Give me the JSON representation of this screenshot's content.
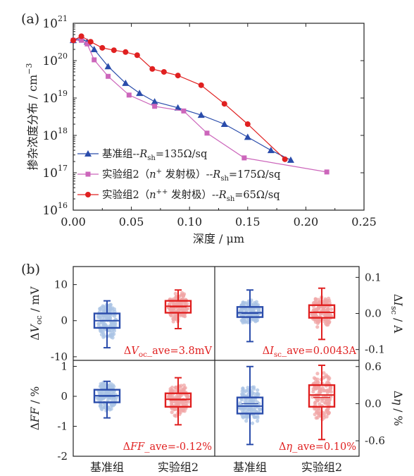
{
  "panel_a": {
    "label": "(a)",
    "chart_data": {
      "type": "line",
      "title": "",
      "xlabel_cn": "深度",
      "xlabel_unit": "μm",
      "ylabel_cn": "掺杂浓度分布",
      "ylabel_unit": "cm",
      "ylabel_exp": "−3",
      "xlim": [
        0.0,
        0.25
      ],
      "ylim": [
        1e+16,
        1e+21
      ],
      "yscale": "log",
      "xticks": [
        "0.00",
        "0.05",
        "0.10",
        "0.15",
        "0.20",
        "0.25"
      ],
      "ytick_exponents": [
        "16",
        "17",
        "18",
        "19",
        "20",
        "21"
      ],
      "legend_position": "bottom-left",
      "series": [
        {
          "name": "基准组--Rsh=135Ω/sq",
          "legend": {
            "pre": "基准组--",
            "r": "R",
            "sub": "sh",
            "post": "=135Ω/sq"
          },
          "color": "#2a4cab",
          "marker": "triangle",
          "x": [
            0.0,
            0.007,
            0.012,
            0.018,
            0.03,
            0.045,
            0.057,
            0.07,
            0.09,
            0.11,
            0.13,
            0.15,
            0.17,
            0.187
          ],
          "y": [
            3.5e+20,
            4e+20,
            3.2e+20,
            2e+20,
            7e+19,
            2.5e+19,
            1.35e+19,
            8e+18,
            5.5e+18,
            3.5e+18,
            2e+18,
            9e+17,
            4e+17,
            2.2e+17
          ]
        },
        {
          "name": "实验组2（n+ 发射极）--Rsh=175Ω/sq",
          "legend": {
            "pre": "实验组2（",
            "n": "n",
            "sup": "+",
            "mid": " 发射极）--",
            "r": "R",
            "sub": "sh",
            "post": "=175Ω/sq"
          },
          "color": "#cc66bb",
          "marker": "square",
          "x": [
            0.0,
            0.007,
            0.012,
            0.018,
            0.03,
            0.048,
            0.07,
            0.095,
            0.115,
            0.147,
            0.218
          ],
          "y": [
            3.5e+20,
            3.5e+20,
            2.8e+20,
            1.05e+20,
            3.8e+19,
            1.2e+19,
            6e+18,
            4.5e+18,
            1.15e+18,
            2.5e+17,
            1.05e+17
          ]
        },
        {
          "name": "实验组2（n++ 发射极）--Rsh=65Ω/sq",
          "legend": {
            "pre": "实验组2（",
            "n": "n",
            "sup": "++",
            "mid": " 发射极）--",
            "r": "R",
            "sub": "sh",
            "post": "=65Ω/sq"
          },
          "color": "#e02020",
          "marker": "circle",
          "x": [
            0.0,
            0.007,
            0.015,
            0.025,
            0.035,
            0.045,
            0.055,
            0.068,
            0.078,
            0.09,
            0.11,
            0.13,
            0.15,
            0.182
          ],
          "y": [
            3.5e+20,
            4.5e+20,
            3.2e+20,
            2.2e+20,
            1.9e+20,
            1.7e+20,
            1.4e+20,
            6e+19,
            5e+19,
            4e+19,
            2.2e+19,
            7e+18,
            2e+18,
            2.3e+17
          ]
        }
      ]
    }
  },
  "panel_b": {
    "label": "(b)",
    "colors": {
      "base": "#2a4cab",
      "base_light": "#a9c3e4",
      "exp": "#e02020",
      "exp_light": "#f0a5a5",
      "annotation": "#e02020"
    },
    "x_categories": [
      "基准组",
      "实验组2",
      "基准组",
      "实验组2"
    ],
    "chart_data": [
      {
        "type": "box",
        "metric": "Voc",
        "ylabel": {
          "pre": "Δ",
          "v": "V",
          "sub": "oc",
          "post": " / mV"
        },
        "axis_side": "left",
        "ylim": [
          -11,
          15
        ],
        "yticks": [
          "10",
          "0",
          "-10"
        ],
        "annotation": {
          "pre": "Δ",
          "v": "V",
          "sub": "oc",
          "post": "_ave=3.8mV"
        },
        "boxes": [
          {
            "category": "基准组",
            "min": -7.5,
            "q1": -2.0,
            "median": 0.0,
            "mean": 0.0,
            "q3": 2.0,
            "max": 5.5
          },
          {
            "category": "实验组2",
            "min": -2.2,
            "q1": 2.2,
            "median": 4.0,
            "mean": 3.8,
            "q3": 5.5,
            "max": 8.5
          }
        ]
      },
      {
        "type": "box",
        "metric": "Isc",
        "ylabel": {
          "pre": "Δ",
          "v": "I",
          "sub": "sc",
          "post": " / A"
        },
        "axis_side": "right",
        "ylim": [
          -0.13,
          0.13
        ],
        "yticks": [
          "0.1",
          "0.0",
          "-0.1"
        ],
        "annotation": {
          "pre": "Δ",
          "v": "I",
          "sub": "sc",
          "post": "_ave=0.0043A"
        },
        "boxes": [
          {
            "category": "基准组",
            "min": -0.078,
            "q1": -0.01,
            "median": 0.002,
            "mean": 0.0,
            "q3": 0.018,
            "max": 0.065
          },
          {
            "category": "实验组2",
            "min": -0.072,
            "q1": -0.012,
            "median": 0.003,
            "mean": 0.0043,
            "q3": 0.023,
            "max": 0.07
          }
        ]
      },
      {
        "type": "box",
        "metric": "FF",
        "ylabel": {
          "pre": "Δ",
          "v": "FF",
          "sub": "",
          "post": " / %"
        },
        "axis_side": "left",
        "ylim": [
          -2,
          1.2
        ],
        "yticks": [
          "1",
          "0",
          "-1",
          "-2"
        ],
        "annotation": {
          "pre": "Δ",
          "v": "FF",
          "sub": "",
          "post": "_ave=-0.12%"
        },
        "boxes": [
          {
            "category": "基准组",
            "min": -0.72,
            "q1": -0.2,
            "median": 0.02,
            "mean": 0.0,
            "q3": 0.22,
            "max": 0.5
          },
          {
            "category": "实验组2",
            "min": -0.95,
            "q1": -0.35,
            "median": -0.1,
            "mean": -0.12,
            "q3": 0.1,
            "max": 0.62
          }
        ]
      },
      {
        "type": "box",
        "metric": "eta",
        "ylabel": {
          "pre": "Δ",
          "v": "η",
          "sub": "",
          "post": " / %"
        },
        "axis_side": "right",
        "ylim": [
          -0.85,
          0.7
        ],
        "yticks": [
          "0.6",
          "0.0",
          "-0.6"
        ],
        "annotation": {
          "pre": "Δ",
          "v": "η",
          "sub": "",
          "post": "_ave=0.10%"
        },
        "boxes": [
          {
            "category": "基准组",
            "min": -0.66,
            "q1": -0.16,
            "median": -0.04,
            "mean": 0.0,
            "q3": 0.1,
            "max": 0.6
          },
          {
            "category": "实验组2",
            "min": -0.58,
            "q1": -0.05,
            "median": 0.14,
            "mean": 0.1,
            "q3": 0.3,
            "max": 0.62
          }
        ]
      }
    ]
  }
}
